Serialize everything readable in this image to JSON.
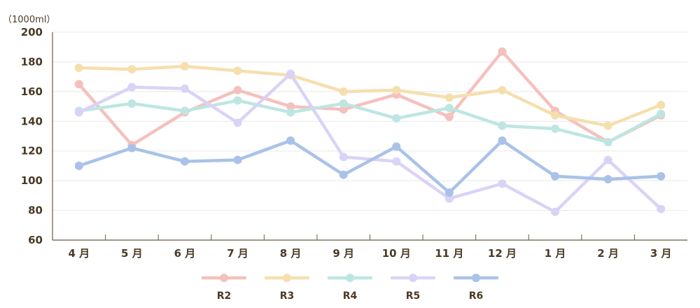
{
  "chart_data": {
    "type": "line",
    "ylabel": "（1000ml）",
    "ylim": [
      60,
      200
    ],
    "yticks": [
      "60",
      "80",
      "100",
      "120",
      "140",
      "160",
      "180",
      "200"
    ],
    "categories": [
      "4 月",
      "5 月",
      "6 月",
      "7 月",
      "8 月",
      "9 月",
      "10 月",
      "11 月",
      "12 月",
      "1 月",
      "2 月",
      "3 月"
    ],
    "grid": "horizontal",
    "legend_position": "bottom",
    "series": [
      {
        "name": "R2",
        "color": "#f5c0bd",
        "values": [
          165,
          124,
          146,
          161,
          150,
          148,
          158,
          143,
          187,
          147,
          126,
          144
        ]
      },
      {
        "name": "R3",
        "color": "#f6dfae",
        "values": [
          176,
          175,
          177,
          174,
          171,
          160,
          161,
          156,
          161,
          144,
          137,
          151
        ]
      },
      {
        "name": "R4",
        "color": "#bde6e2",
        "values": [
          147,
          152,
          147,
          154,
          146,
          152,
          142,
          149,
          137,
          135,
          126,
          145
        ]
      },
      {
        "name": "R5",
        "color": "#dad3f6",
        "values": [
          146,
          163,
          162,
          139,
          172,
          116,
          113,
          88,
          98,
          79,
          114,
          81
        ]
      },
      {
        "name": "R6",
        "color": "#a9c2e8",
        "values": [
          110,
          122,
          113,
          114,
          127,
          104,
          123,
          92,
          127,
          103,
          101,
          103
        ]
      }
    ]
  }
}
